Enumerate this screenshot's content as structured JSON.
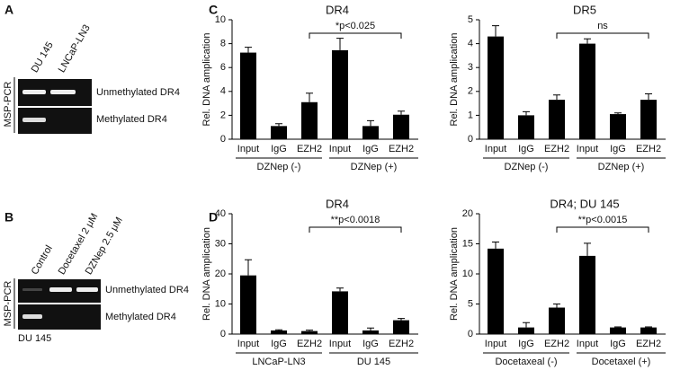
{
  "panels": {
    "a": {
      "label": "A",
      "lanes": [
        "DU 145",
        "LNCaP-LN3"
      ],
      "side_label": "MSP-PCR",
      "rows": [
        "Unmethylated DR4",
        "Methylated DR4"
      ]
    },
    "b": {
      "label": "B",
      "lanes": [
        "Control",
        "Docetaxel 2 μM",
        "DZNep 2.5 μM"
      ],
      "side_label": "MSP-PCR",
      "rows": [
        "Unmethylated DR4",
        "Methylated DR4"
      ],
      "cell_line": "DU 145"
    },
    "c": {
      "label": "C"
    },
    "d": {
      "label": "D"
    }
  },
  "chart_data": [
    {
      "type": "bar",
      "title": "DR4",
      "y_label": "Rel. DNA amplication",
      "categories": [
        "Input",
        "IgG",
        "EZH2",
        "Input",
        "IgG",
        "EZH2"
      ],
      "groups": [
        "DZNep (-)",
        "DZNep (+)"
      ],
      "values": [
        7.25,
        1.1,
        3.1,
        7.45,
        1.1,
        2.05
      ],
      "errors": [
        0.45,
        0.2,
        0.75,
        1.0,
        0.45,
        0.3
      ],
      "color": "#000000",
      "ylim": [
        0,
        10
      ],
      "yticks": [
        0,
        2,
        4,
        6,
        8,
        10
      ],
      "annotation": "*p<0.025"
    },
    {
      "type": "bar",
      "title": "DR5",
      "y_label": "Rel. DNA amplication",
      "categories": [
        "Input",
        "IgG",
        "EZH2",
        "Input",
        "IgG",
        "EZH2"
      ],
      "groups": [
        "DZNep (-)",
        "DZNep (+)"
      ],
      "values": [
        4.3,
        1.0,
        1.65,
        4.0,
        1.05,
        1.65
      ],
      "errors": [
        0.45,
        0.15,
        0.2,
        0.2,
        0.05,
        0.25
      ],
      "color": "#000000",
      "ylim": [
        0,
        5
      ],
      "yticks": [
        0,
        1,
        2,
        3,
        4,
        5
      ],
      "annotation": "ns"
    },
    {
      "type": "bar",
      "title": "DR4",
      "y_label": "Rel. DNA amplication",
      "categories": [
        "Input",
        "IgG",
        "EZH2",
        "Input",
        "IgG",
        "EZH2"
      ],
      "groups": [
        "LNCaP-LN3",
        "DU 145"
      ],
      "values": [
        19.5,
        1.2,
        1.0,
        14.2,
        1.2,
        4.6
      ],
      "errors": [
        5.2,
        0.2,
        0.3,
        1.1,
        0.8,
        0.6
      ],
      "color": "#000000",
      "ylim": [
        0,
        40
      ],
      "yticks": [
        0,
        10,
        20,
        30,
        40
      ],
      "annotation": "**p<0.0018"
    },
    {
      "type": "bar",
      "title": "DR4; DU 145",
      "y_label": "Rel. DNA amplication",
      "categories": [
        "Input",
        "IgG",
        "EZH2",
        "Input",
        "IgG",
        "EZH2"
      ],
      "groups": [
        "Docetaxeal (-)",
        "Docetaxel (+)"
      ],
      "values": [
        14.2,
        1.1,
        4.4,
        13.0,
        1.1,
        1.1
      ],
      "errors": [
        1.1,
        0.8,
        0.6,
        2.1,
        0.1,
        0.1
      ],
      "color": "#000000",
      "ylim": [
        0,
        20
      ],
      "yticks": [
        0,
        5,
        10,
        15,
        20
      ],
      "annotation": "**p<0.0015"
    }
  ]
}
